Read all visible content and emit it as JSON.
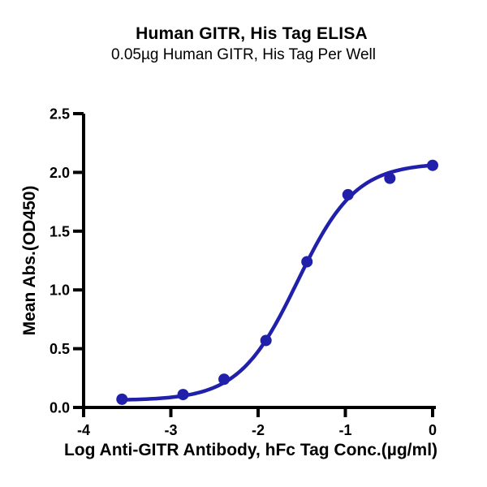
{
  "chart_data": {
    "type": "scatter",
    "title": "Human GITR, His Tag ELISA",
    "subtitle": "0.05µg Human GITR, His Tag Per Well",
    "xlabel": "Log Anti-GITR Antibody, hFc Tag Conc.(µg/ml)",
    "ylabel": "Mean Abs.(OD450)",
    "xlim": [
      -4,
      0
    ],
    "ylim": [
      0,
      2.5
    ],
    "xticks": [
      -4,
      -3,
      -2,
      -1,
      0
    ],
    "xtick_labels": [
      "-4",
      "-3",
      "-2",
      "-1",
      "0"
    ],
    "yticks": [
      0,
      0.5,
      1,
      1.5,
      2,
      2.5
    ],
    "ytick_labels": [
      "0.0",
      "0.5",
      "1.0",
      "1.5",
      "2.0",
      "2.5"
    ],
    "grid": false,
    "legend_position": "none",
    "series": [
      {
        "name": "Anti-GITR Antibody, hFc Tag",
        "marker": "circle",
        "x": [
          -3.56,
          -2.86,
          -2.39,
          -1.91,
          -1.44,
          -0.97,
          -0.49,
          0.0
        ],
        "y": [
          0.07,
          0.11,
          0.24,
          0.57,
          1.24,
          1.81,
          1.95,
          2.06
        ]
      }
    ],
    "fit_4pl": {
      "bottom": 0.06,
      "top": 2.08,
      "log_ec50": -1.55,
      "hill": 1.3
    },
    "colors": {
      "series": "#2020aa",
      "axis": "#000000",
      "background": "#ffffff"
    }
  }
}
